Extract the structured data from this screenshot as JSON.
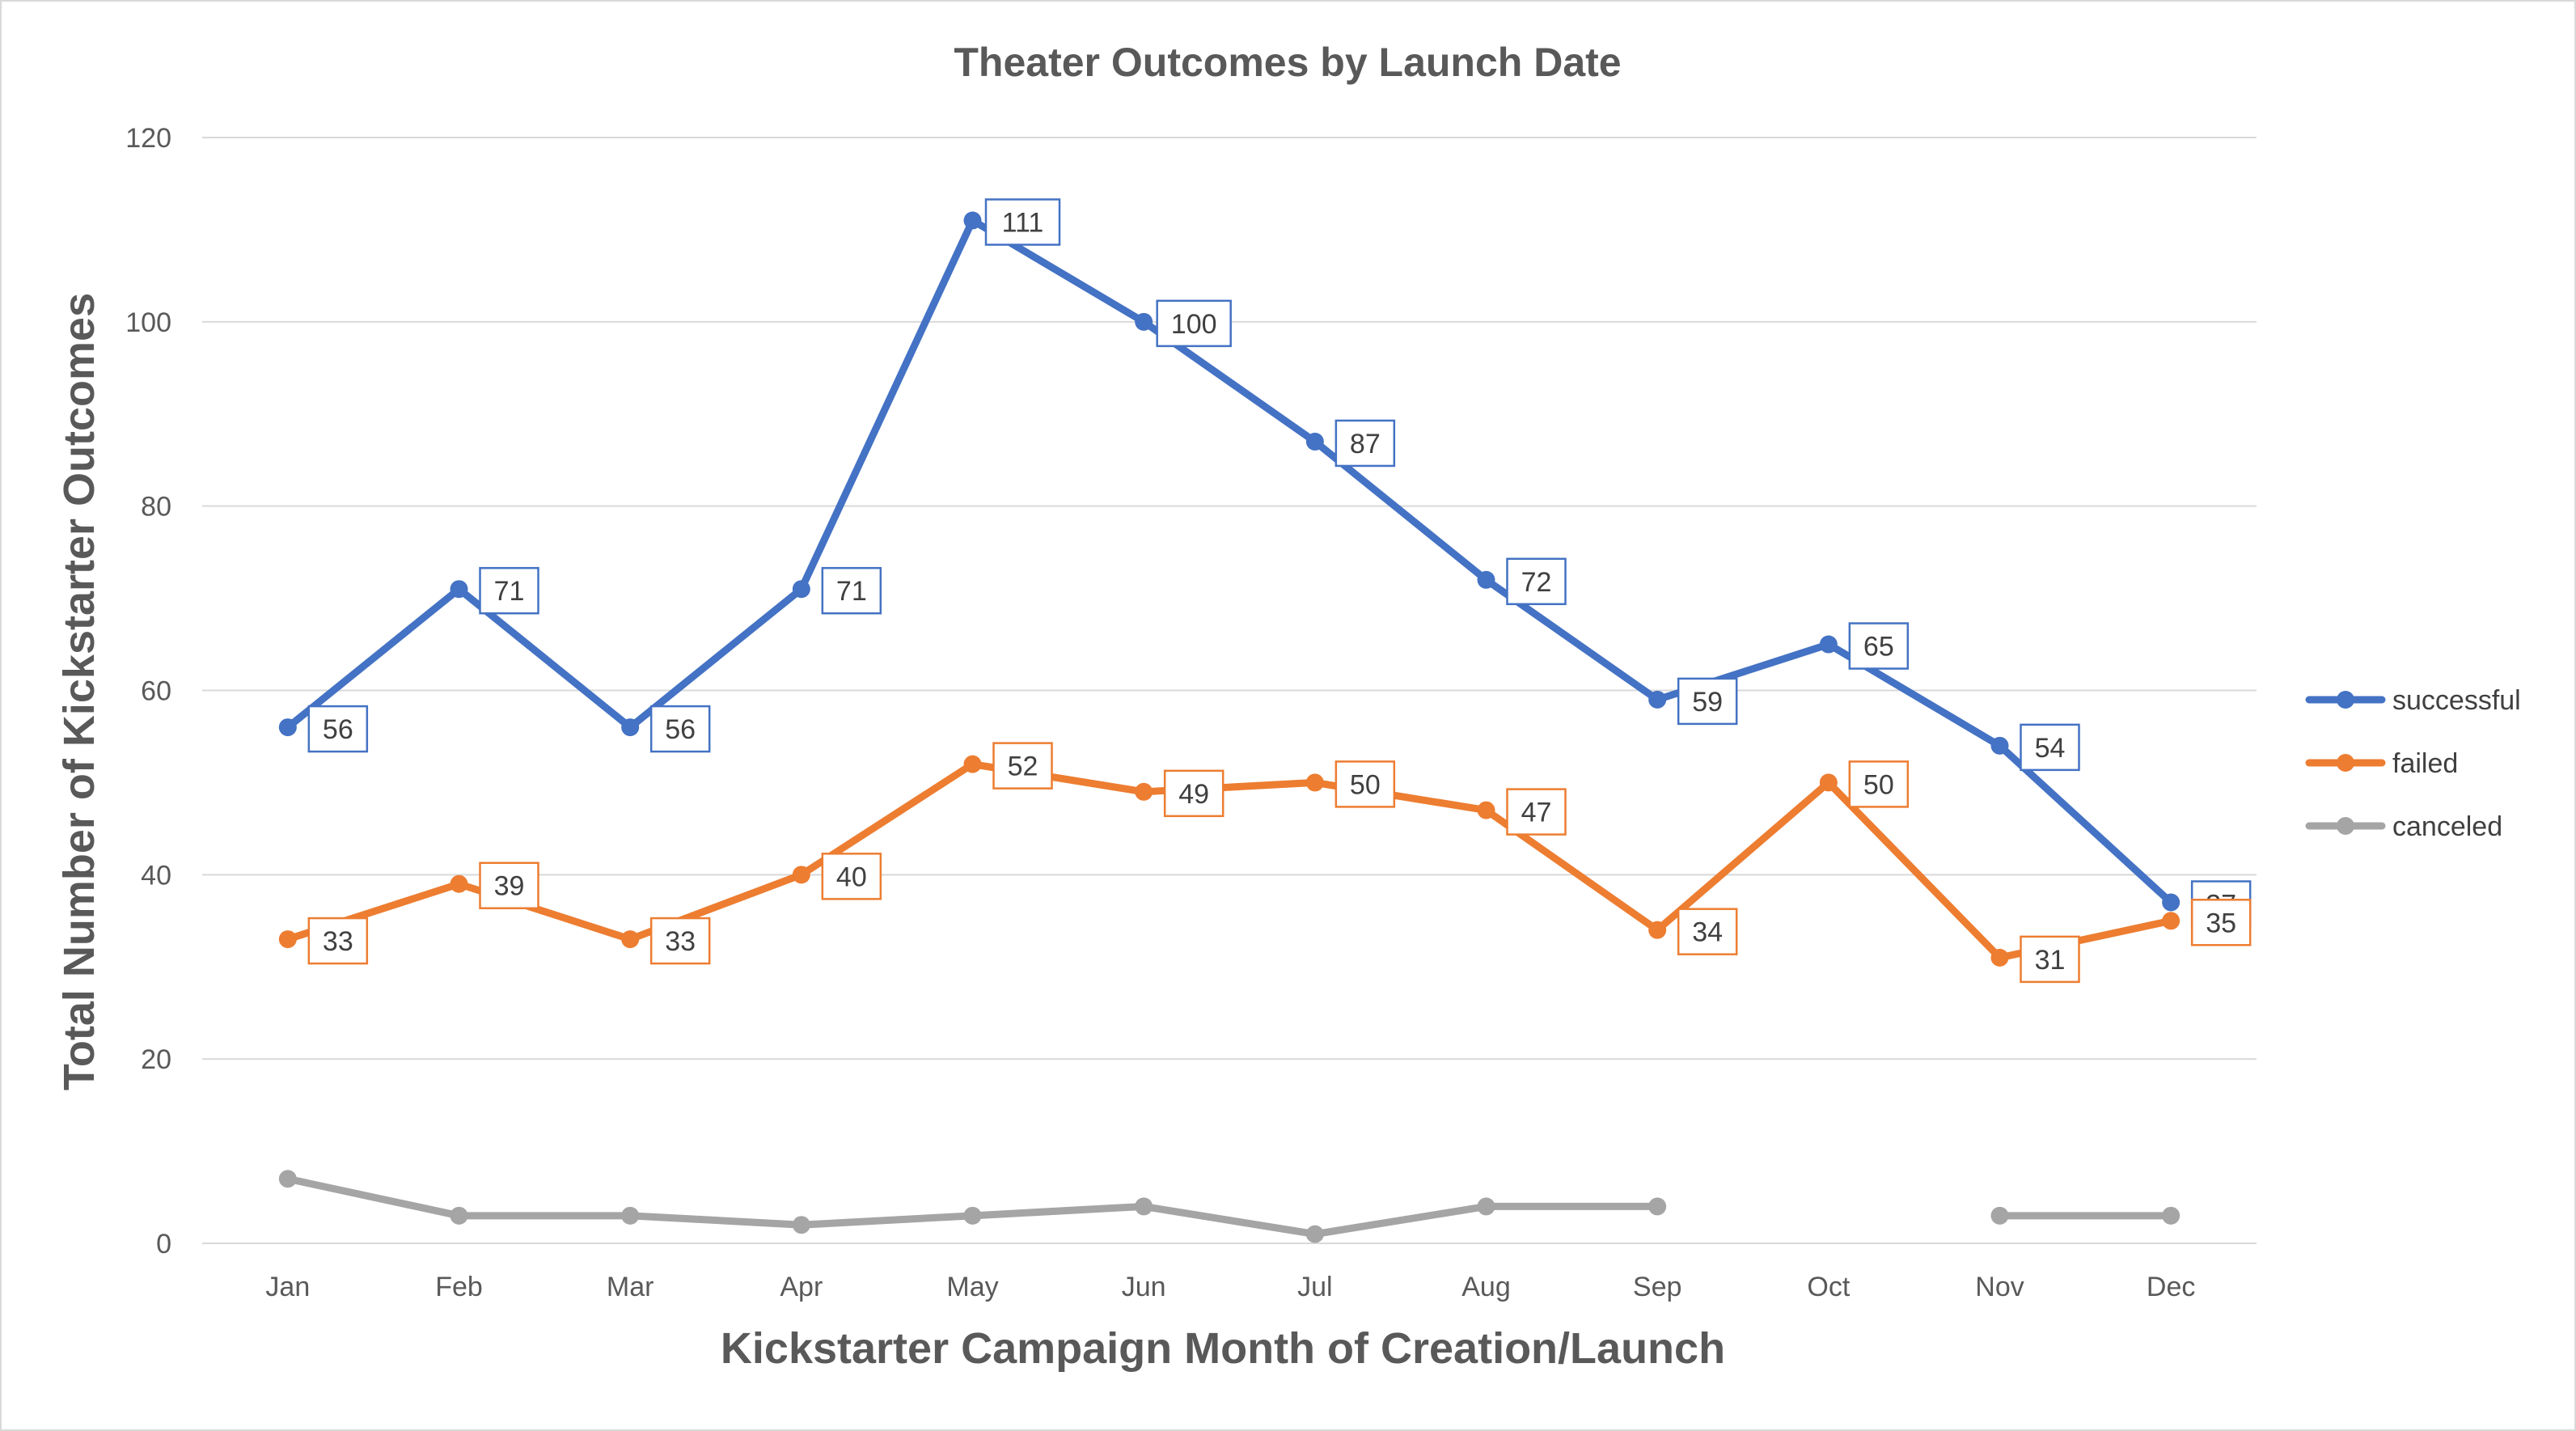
{
  "chart_data": {
    "type": "line",
    "title": "Theater Outcomes by Launch Date",
    "xlabel": "Kickstarter Campaign Month of Creation/Launch",
    "ylabel": "Total Number of Kickstarter Outcomes",
    "categories": [
      "Jan",
      "Feb",
      "Mar",
      "Apr",
      "May",
      "Jun",
      "Jul",
      "Aug",
      "Sep",
      "Oct",
      "Nov",
      "Dec"
    ],
    "ylim": [
      0,
      120
    ],
    "yticks": [
      0,
      20,
      40,
      60,
      80,
      100,
      120
    ],
    "grid": true,
    "legend_position": "right",
    "series": [
      {
        "name": "successful",
        "color": "#4472c4",
        "values": [
          56,
          71,
          56,
          71,
          111,
          100,
          87,
          72,
          59,
          65,
          54,
          37
        ],
        "data_labels": true
      },
      {
        "name": "failed",
        "color": "#ed7d31",
        "values": [
          33,
          39,
          33,
          40,
          52,
          49,
          50,
          47,
          34,
          50,
          31,
          35
        ],
        "data_labels": true
      },
      {
        "name": "canceled",
        "color": "#a5a5a5",
        "values": [
          7,
          3,
          3,
          2,
          3,
          4,
          1,
          4,
          4,
          null,
          3,
          3
        ],
        "data_labels": false
      }
    ]
  }
}
